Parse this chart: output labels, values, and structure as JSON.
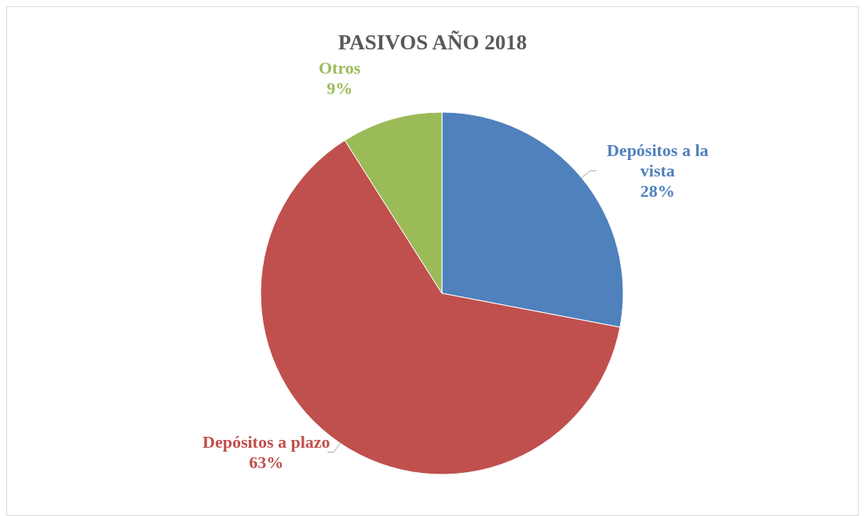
{
  "chart_data": {
    "type": "pie",
    "title": "PASIVOS AÑO 2018",
    "categories": [
      "Depósitos a la vista",
      "Depósitos a plazo",
      "Otros"
    ],
    "values": [
      28,
      63,
      9
    ],
    "colors": [
      "#4f81bd",
      "#c0504d",
      "#9bbb59"
    ],
    "value_labels": [
      "28%",
      "63%",
      "9%"
    ]
  }
}
